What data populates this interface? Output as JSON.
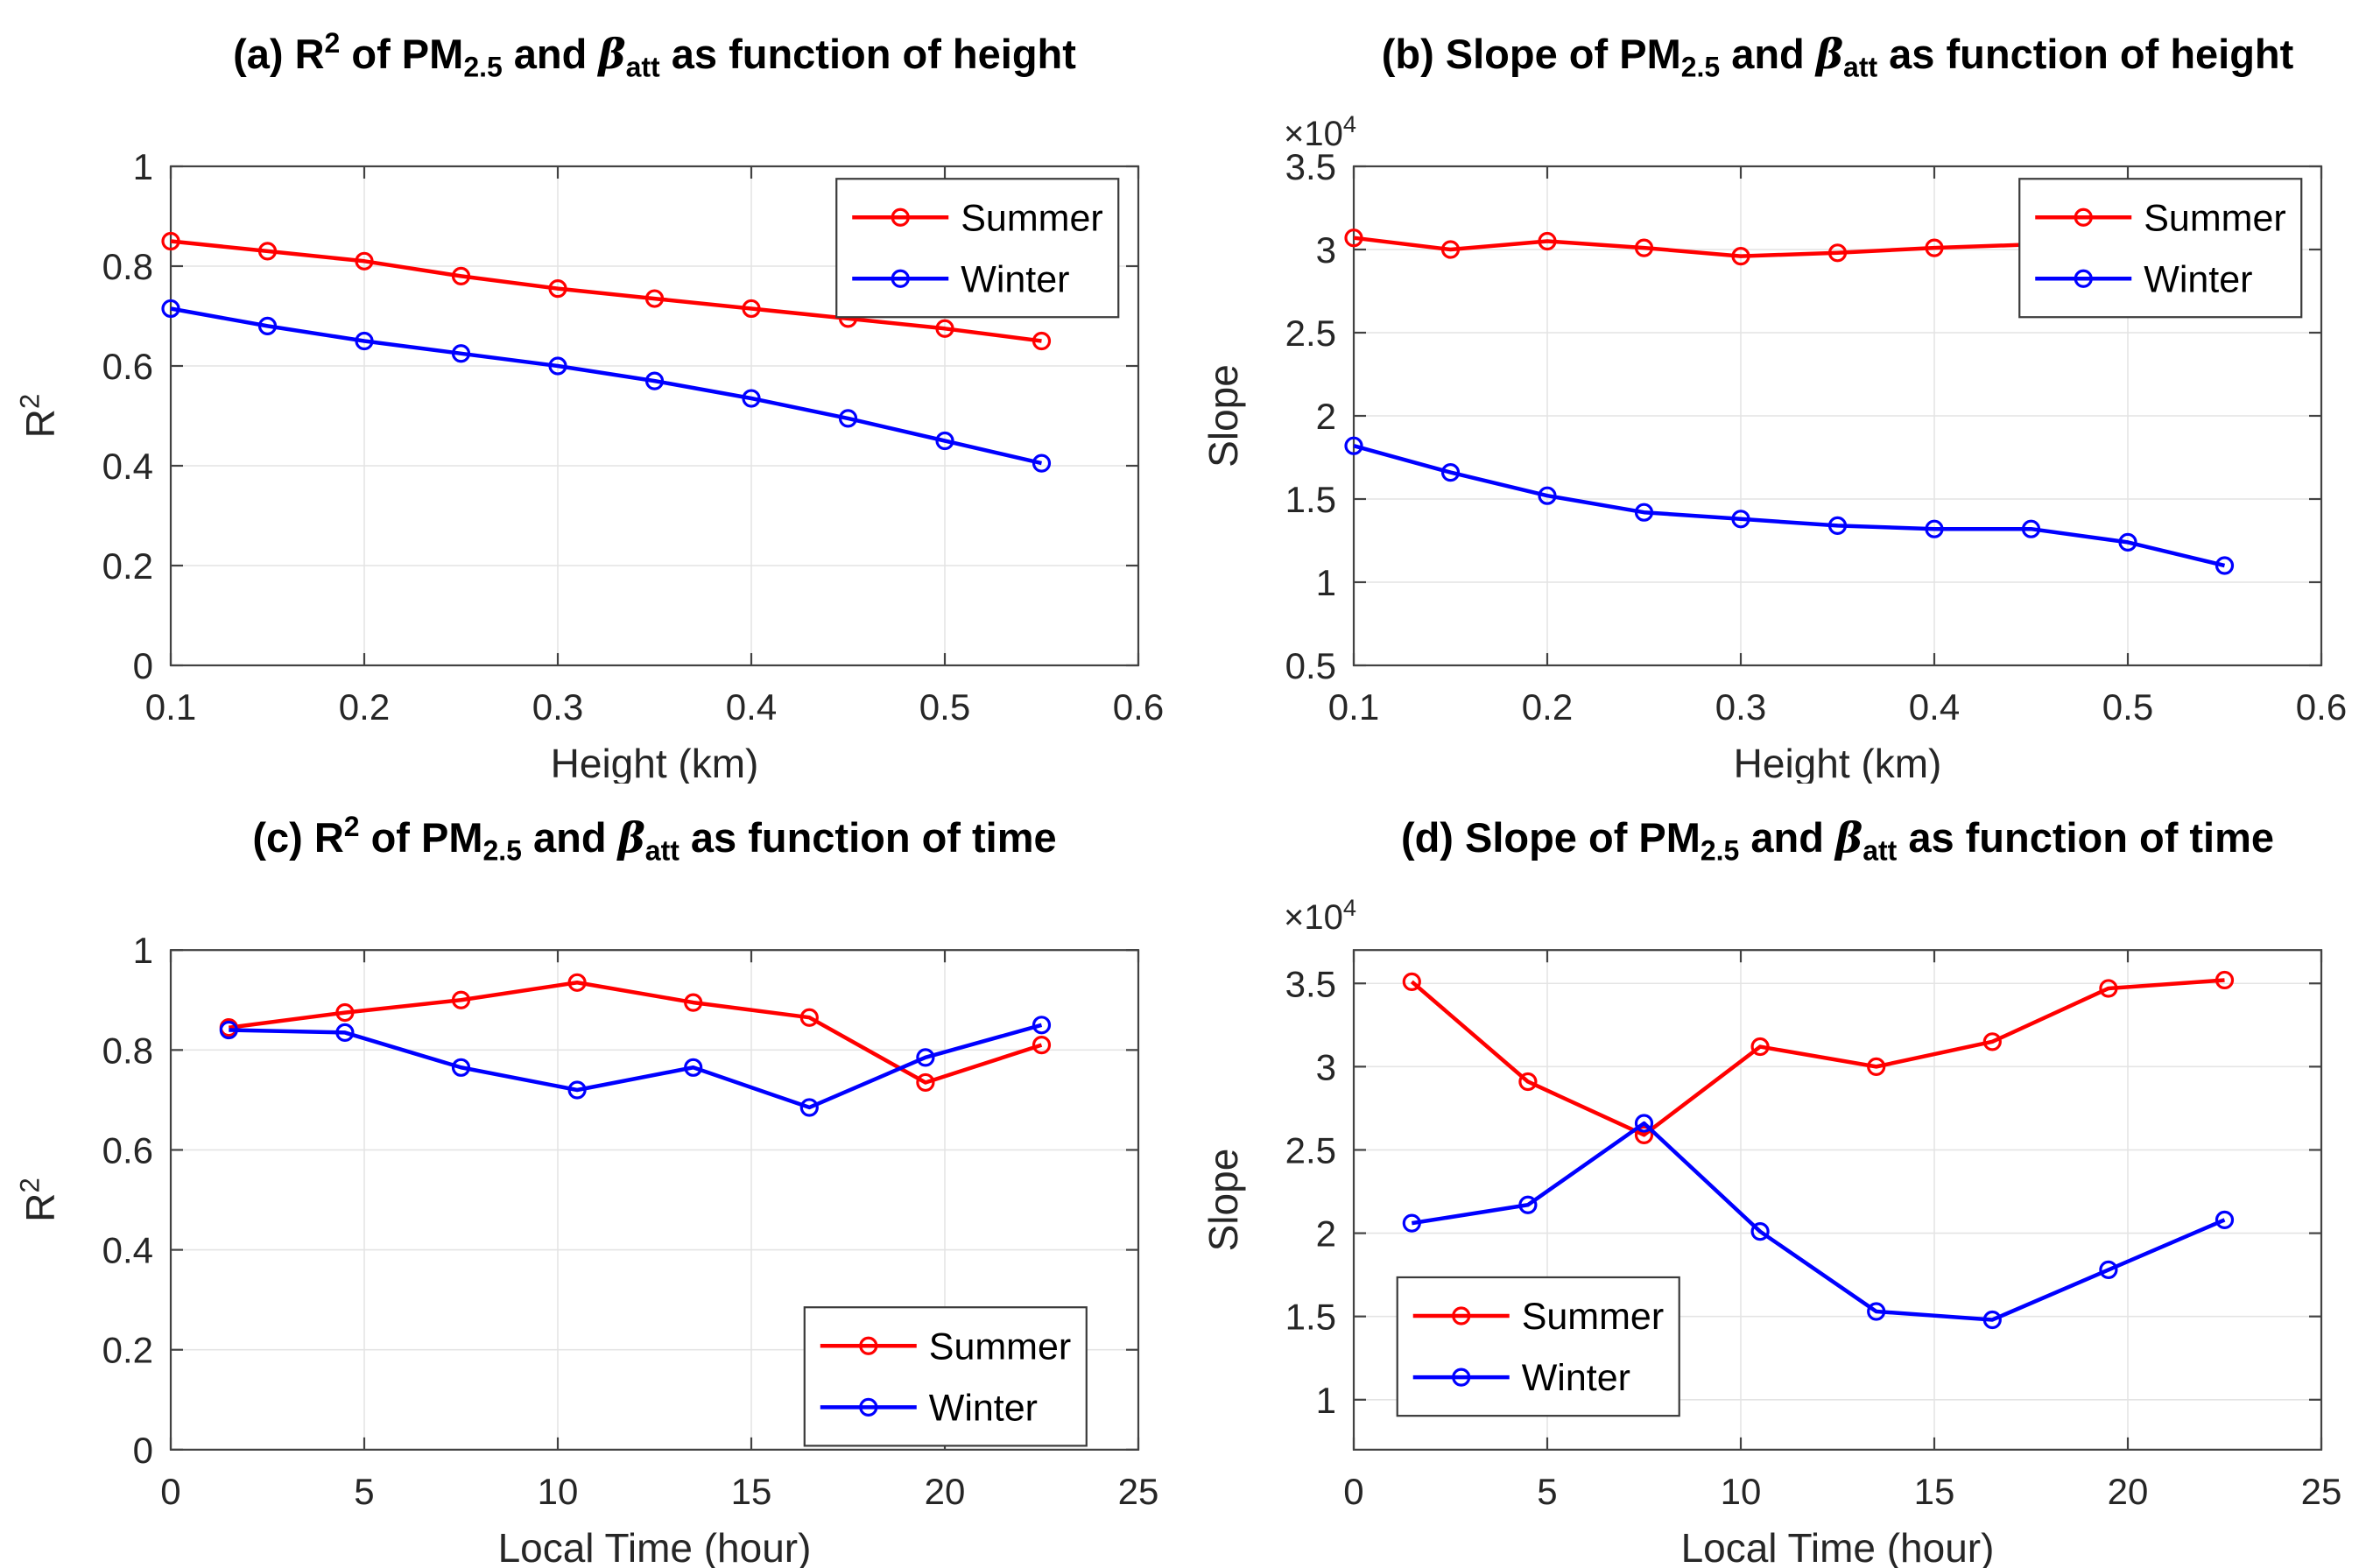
{
  "figure": {
    "background": "#FFFFFF",
    "text_color": "#262626",
    "grid_color": "#E4E4E4",
    "axis_color": "#424242"
  },
  "legend_labels": {
    "summer": "Summer",
    "winter": "Winter"
  },
  "chart_data": [
    {
      "id": "a",
      "type": "line",
      "title_parts": [
        {
          "t": "(a) R"
        },
        {
          "t": "2",
          "sup": true
        },
        {
          "t": " of PM"
        },
        {
          "t": "2.5",
          "sub": true
        },
        {
          "t": " and "
        },
        {
          "t": "β",
          "italic": true
        },
        {
          "t": "att",
          "sub": true
        },
        {
          "t": " as function of height"
        }
      ],
      "xlabel": "Height (km)",
      "ylabel_parts": [
        {
          "t": "R"
        },
        {
          "t": "2",
          "sup": true
        }
      ],
      "offset_parts": null,
      "xlim": [
        0.1,
        0.6
      ],
      "ylim": [
        0,
        1
      ],
      "xticks": [
        0.1,
        0.2,
        0.3,
        0.4,
        0.5,
        0.6
      ],
      "xtick_labels": [
        "0.1",
        "0.2",
        "0.3",
        "0.4",
        "0.5",
        "0.6"
      ],
      "yticks": [
        0,
        0.2,
        0.4,
        0.6,
        0.8,
        1
      ],
      "ytick_labels": [
        "0",
        "0.2",
        "0.4",
        "0.6",
        "0.8",
        "1"
      ],
      "grid": true,
      "legend_pos": {
        "fx": 0.688,
        "fy": 0.025
      },
      "series": [
        {
          "name": "Summer",
          "color": "#FF0000",
          "x": [
            0.1,
            0.15,
            0.2,
            0.25,
            0.3,
            0.35,
            0.4,
            0.45,
            0.5,
            0.55
          ],
          "y": [
            0.85,
            0.83,
            0.81,
            0.78,
            0.755,
            0.735,
            0.715,
            0.695,
            0.675,
            0.65
          ]
        },
        {
          "name": "Winter",
          "color": "#0000FF",
          "x": [
            0.1,
            0.15,
            0.2,
            0.25,
            0.3,
            0.35,
            0.4,
            0.45,
            0.5,
            0.55
          ],
          "y": [
            0.715,
            0.68,
            0.65,
            0.625,
            0.6,
            0.57,
            0.535,
            0.495,
            0.45,
            0.405
          ]
        }
      ]
    },
    {
      "id": "b",
      "type": "line",
      "title_parts": [
        {
          "t": "(b) Slope of PM"
        },
        {
          "t": "2.5",
          "sub": true
        },
        {
          "t": " and "
        },
        {
          "t": "β",
          "italic": true
        },
        {
          "t": "att",
          "sub": true
        },
        {
          "t": " as function of height"
        }
      ],
      "xlabel": "Height (km)",
      "ylabel_parts": [
        {
          "t": "Slope"
        }
      ],
      "offset_parts": [
        {
          "t": "×10"
        },
        {
          "t": "4",
          "sup": true
        }
      ],
      "xlim": [
        0.1,
        0.6
      ],
      "ylim": [
        0.5,
        3.5
      ],
      "xticks": [
        0.1,
        0.2,
        0.3,
        0.4,
        0.5,
        0.6
      ],
      "xtick_labels": [
        "0.1",
        "0.2",
        "0.3",
        "0.4",
        "0.5",
        "0.6"
      ],
      "yticks": [
        0.5,
        1,
        1.5,
        2,
        2.5,
        3,
        3.5
      ],
      "ytick_labels": [
        "0.5",
        "1",
        "1.5",
        "2",
        "2.5",
        "3",
        "3.5"
      ],
      "grid": true,
      "legend_pos": {
        "fx": 0.688,
        "fy": 0.025
      },
      "series": [
        {
          "name": "Summer",
          "color": "#FF0000",
          "x": [
            0.1,
            0.15,
            0.2,
            0.25,
            0.3,
            0.35,
            0.4,
            0.45
          ],
          "y": [
            3.07,
            3.0,
            3.05,
            3.01,
            2.96,
            2.98,
            3.01,
            3.03
          ]
        },
        {
          "name": "Winter",
          "color": "#0000FF",
          "x": [
            0.1,
            0.15,
            0.2,
            0.25,
            0.3,
            0.35,
            0.4,
            0.45,
            0.5,
            0.55
          ],
          "y": [
            1.82,
            1.66,
            1.52,
            1.42,
            1.38,
            1.34,
            1.32,
            1.32,
            1.24,
            1.1
          ]
        }
      ]
    },
    {
      "id": "c",
      "type": "line",
      "title_parts": [
        {
          "t": "(c) R"
        },
        {
          "t": "2",
          "sup": true
        },
        {
          "t": " of PM"
        },
        {
          "t": "2.5",
          "sub": true
        },
        {
          "t": " and "
        },
        {
          "t": "β",
          "italic": true
        },
        {
          "t": "att",
          "sub": true
        },
        {
          "t": " as function of time"
        }
      ],
      "xlabel": "Local Time (hour)",
      "ylabel_parts": [
        {
          "t": "R"
        },
        {
          "t": "2",
          "sup": true
        }
      ],
      "offset_parts": null,
      "xlim": [
        0,
        25
      ],
      "ylim": [
        0,
        1
      ],
      "xticks": [
        0,
        5,
        10,
        15,
        20,
        25
      ],
      "xtick_labels": [
        "0",
        "5",
        "10",
        "15",
        "20",
        "25"
      ],
      "yticks": [
        0,
        0.2,
        0.4,
        0.6,
        0.8,
        1
      ],
      "ytick_labels": [
        "0",
        "0.2",
        "0.4",
        "0.6",
        "0.8",
        "1"
      ],
      "grid": true,
      "legend_pos": {
        "fx": 0.655,
        "fy": 0.715
      },
      "series": [
        {
          "name": "Summer",
          "color": "#FF0000",
          "x": [
            1.5,
            4.5,
            7.5,
            10.5,
            13.5,
            16.5,
            19.5,
            22.5
          ],
          "y": [
            0.845,
            0.875,
            0.9,
            0.935,
            0.895,
            0.865,
            0.735,
            0.81
          ]
        },
        {
          "name": "Winter",
          "color": "#0000FF",
          "x": [
            1.5,
            4.5,
            7.5,
            10.5,
            13.5,
            16.5,
            19.5,
            22.5
          ],
          "y": [
            0.84,
            0.835,
            0.765,
            0.72,
            0.765,
            0.685,
            0.785,
            0.85
          ]
        }
      ]
    },
    {
      "id": "d",
      "type": "line",
      "title_parts": [
        {
          "t": "(d) Slope of PM"
        },
        {
          "t": "2.5",
          "sub": true
        },
        {
          "t": " and "
        },
        {
          "t": "β",
          "italic": true
        },
        {
          "t": "att",
          "sub": true
        },
        {
          "t": " as function of time"
        }
      ],
      "xlabel": "Local Time (hour)",
      "ylabel_parts": [
        {
          "t": "Slope"
        }
      ],
      "offset_parts": [
        {
          "t": "×10"
        },
        {
          "t": "4",
          "sup": true
        }
      ],
      "xlim": [
        0,
        25
      ],
      "ylim": [
        0.7,
        3.7
      ],
      "xticks": [
        0,
        5,
        10,
        15,
        20,
        25
      ],
      "xtick_labels": [
        "0",
        "5",
        "10",
        "15",
        "20",
        "25"
      ],
      "yticks": [
        1,
        1.5,
        2,
        2.5,
        3,
        3.5
      ],
      "ytick_labels": [
        "1",
        "1.5",
        "2",
        "2.5",
        "3",
        "3.5"
      ],
      "grid": true,
      "legend_pos": {
        "fx": 0.045,
        "fy": 0.655
      },
      "series": [
        {
          "name": "Summer",
          "color": "#FF0000",
          "x": [
            1.5,
            4.5,
            7.5,
            10.5,
            13.5,
            16.5,
            19.5,
            22.5
          ],
          "y": [
            3.51,
            2.91,
            2.59,
            3.12,
            3.0,
            3.15,
            3.47,
            3.52
          ]
        },
        {
          "name": "Winter",
          "color": "#0000FF",
          "x": [
            1.5,
            4.5,
            7.5,
            10.5,
            13.5,
            16.5,
            19.5,
            22.5
          ],
          "y": [
            2.06,
            2.17,
            2.66,
            2.01,
            1.53,
            1.48,
            1.78,
            2.08
          ]
        }
      ]
    }
  ]
}
